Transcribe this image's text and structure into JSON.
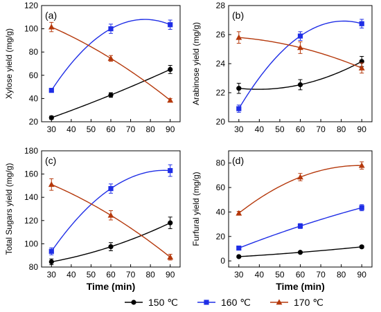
{
  "colors": {
    "s150": "#000000",
    "s160": "#1f2ee6",
    "s170": "#b5380b"
  },
  "legend": [
    {
      "label": "150 ℃",
      "color": "#000000",
      "marker": "circle"
    },
    {
      "label": "160 ℃",
      "color": "#1f2ee6",
      "marker": "square"
    },
    {
      "label": "170 ℃",
      "color": "#b5380b",
      "marker": "triangle"
    }
  ],
  "chart_data": [
    {
      "panel": "(a)",
      "type": "line",
      "xlabel": "",
      "ylabel": "Xylose yield (mg/g)",
      "xlim": [
        25,
        95
      ],
      "ylim": [
        20,
        120
      ],
      "xticks": [
        30,
        40,
        50,
        60,
        70,
        80,
        90
      ],
      "yticks": [
        20,
        40,
        60,
        80,
        100,
        120
      ],
      "x": [
        30,
        60,
        90
      ],
      "series": [
        {
          "name": "150 ℃",
          "values": [
            23.5,
            43,
            65
          ],
          "errors": [
            1.5,
            2,
            3.5
          ]
        },
        {
          "name": "160 ℃",
          "values": [
            47,
            100,
            103.5
          ],
          "errors": [
            1.5,
            4,
            4
          ]
        },
        {
          "name": "170 ℃",
          "values": [
            101.5,
            74.5,
            38.5
          ],
          "errors": [
            4,
            2.5,
            1.5
          ]
        }
      ]
    },
    {
      "panel": "(b)",
      "type": "line",
      "xlabel": "",
      "ylabel": "Arabinose yield (mg/g)",
      "xlim": [
        25,
        95
      ],
      "ylim": [
        20,
        28
      ],
      "xticks": [
        30,
        40,
        50,
        60,
        70,
        80,
        90
      ],
      "yticks": [
        20,
        22,
        24,
        26,
        28
      ],
      "x": [
        30,
        60,
        90
      ],
      "series": [
        {
          "name": "150 ℃",
          "values": [
            22.3,
            22.55,
            24.15
          ],
          "errors": [
            0.35,
            0.35,
            0.35
          ]
        },
        {
          "name": "160 ℃",
          "values": [
            20.9,
            25.9,
            26.75
          ],
          "errors": [
            0.25,
            0.3,
            0.3
          ]
        },
        {
          "name": "170 ℃",
          "values": [
            25.8,
            25.1,
            23.7
          ],
          "errors": [
            0.4,
            0.4,
            0.35
          ]
        }
      ]
    },
    {
      "panel": "(c)",
      "type": "line",
      "xlabel": "Time (min)",
      "ylabel": "Total Sugars yield (mg/g)",
      "xlim": [
        25,
        95
      ],
      "ylim": [
        80,
        180
      ],
      "xticks": [
        30,
        40,
        50,
        60,
        70,
        80,
        90
      ],
      "yticks": [
        80,
        100,
        120,
        140,
        160,
        180
      ],
      "x": [
        30,
        60,
        90
      ],
      "series": [
        {
          "name": "150 ℃",
          "values": [
            84.5,
            97.5,
            118
          ],
          "errors": [
            2.5,
            3.5,
            5
          ]
        },
        {
          "name": "160 ℃",
          "values": [
            93.5,
            147.5,
            163
          ],
          "errors": [
            3,
            4,
            5
          ]
        },
        {
          "name": "170 ℃",
          "values": [
            151,
            124.5,
            88.5
          ],
          "errors": [
            5,
            4,
            2.5
          ]
        }
      ]
    },
    {
      "panel": "(d)",
      "type": "line",
      "xlabel": "Time (min)",
      "ylabel": "Furfural yield (mg/g)",
      "xlim": [
        25,
        95
      ],
      "ylim": [
        -5,
        90
      ],
      "xticks": [
        30,
        40,
        50,
        60,
        70,
        80,
        90
      ],
      "yticks": [
        0,
        20,
        40,
        60,
        80
      ],
      "x": [
        30,
        60,
        90
      ],
      "series": [
        {
          "name": "150 ℃",
          "values": [
            3.5,
            7,
            11.5
          ],
          "errors": [
            0.8,
            0.8,
            1
          ]
        },
        {
          "name": "160 ℃",
          "values": [
            10.5,
            28.5,
            43.5
          ],
          "errors": [
            1,
            2,
            2.5
          ]
        },
        {
          "name": "170 ℃",
          "values": [
            39,
            68.5,
            78
          ],
          "errors": [
            1.5,
            3,
            3
          ]
        }
      ]
    }
  ]
}
